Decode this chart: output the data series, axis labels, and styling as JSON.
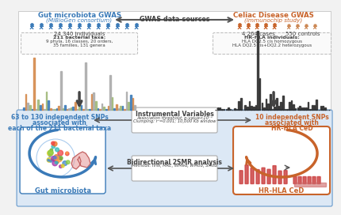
{
  "bg_color": "#f5f5f5",
  "blue_color": "#3a7ab8",
  "orange_color": "#c8632a",
  "dark_gray": "#404040",
  "top_left_title": "Gut microbiota GWAS",
  "top_left_subtitle": "(MiBioGen consortium)",
  "top_left_count": "24 340 individuals",
  "top_left_box_line1": "211 bacterial taxa:",
  "top_left_box_line2": "9 phyla, 16 classes, 20 orders,",
  "top_left_box_line3": "35 families, 131 genera",
  "top_center_text": "GWAS data-sources",
  "top_right_title": "Celiac Disease GWAS",
  "top_right_subtitle": "(immunochip study)",
  "top_right_cases": "4 264 cases",
  "top_right_controls": "550 controls",
  "top_right_box_line1": "HR-HLA individuals:",
  "top_right_box_line2": "HLA DQ2.5 cis homozygous",
  "top_right_box_line3": "HLA DQ2.5 cis+DQ2.2 heterozygous",
  "bottom_left_text1": "63 to 130 independent SNPs",
  "bottom_left_text2": "associated with",
  "bottom_left_text3": "each of the 211 bacterial taxa",
  "center_iv_title": "Instrumental Variables",
  "center_iv_line1": "Association threshold: p-value<10⁻¹",
  "center_iv_line2": "Clumping: r²=0.001; 10,000 Kb window",
  "bottom_right_text1": "10 independent SNPs",
  "bottom_right_text2": "associated with",
  "bottom_right_text3": "HR-HLA CeD",
  "bottom_gut_label": "Gut microbiota",
  "bottom_ced_label": "HR-HLA CeD",
  "center_2smr_title": "Bidirectional 2SMR analysis",
  "center_2smr_line1": "Methods: IVW, MRE, WMed, WMod, SMod"
}
